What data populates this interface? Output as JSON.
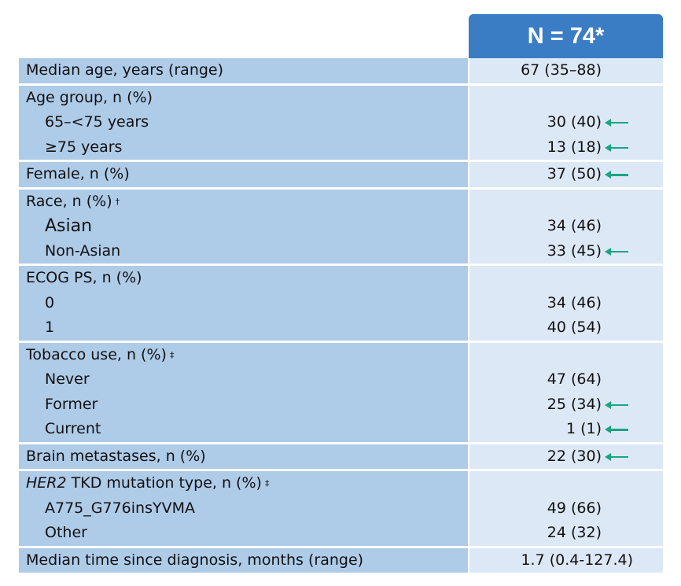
{
  "header": {
    "n_label": "N = 74*"
  },
  "rows": {
    "median_age": {
      "label": "Median age, years (range)",
      "value": "67 (35–88)"
    },
    "age_group": {
      "label": "Age group, n (%)",
      "items": [
        {
          "label": "65–<75 years",
          "value": "30 (40)",
          "arrow": true
        },
        {
          "label": "≥75 years",
          "value": "13 (18)",
          "arrow": true
        }
      ]
    },
    "female": {
      "label": "Female, n (%)",
      "value": "37 (50)",
      "arrow": true
    },
    "race": {
      "label": "Race, n (%)",
      "symbol": "†",
      "items": [
        {
          "label": "Asian",
          "value": "34 (46)"
        },
        {
          "label": "Non-Asian",
          "value": "33 (45)",
          "arrow": true
        }
      ]
    },
    "ecog": {
      "label": "ECOG PS, n (%)",
      "items": [
        {
          "label": "0",
          "value": "34 (46)"
        },
        {
          "label": "1",
          "value": "40 (54)"
        }
      ]
    },
    "tobacco": {
      "label": "Tobacco use, n (%)",
      "symbol": "‡",
      "items": [
        {
          "label": "Never",
          "value": "47 (64)"
        },
        {
          "label": "Former",
          "value": "25 (34)",
          "arrow": true
        },
        {
          "label": "Current",
          "value": "1 (1)",
          "arrow": true
        }
      ]
    },
    "brain": {
      "label": "Brain metastases, n (%)",
      "value": "22 (30)",
      "arrow": true
    },
    "her2": {
      "label_italic": "HER2",
      "label_rest": " TKD mutation type, n (%)",
      "symbol": "‡",
      "items": [
        {
          "label": "A775_G776insYVMA",
          "value": "49 (66)"
        },
        {
          "label": "Other",
          "value": "24 (32)"
        }
      ]
    },
    "time_dx": {
      "label": "Median time since diagnosis, months (range)",
      "value": "1.7 (0.4-127.4)"
    }
  },
  "colors": {
    "header": "#3a7dc4",
    "label_bg": "#aecbe8",
    "value_bg": "#dce8f5",
    "arrow": "#1aa582"
  }
}
